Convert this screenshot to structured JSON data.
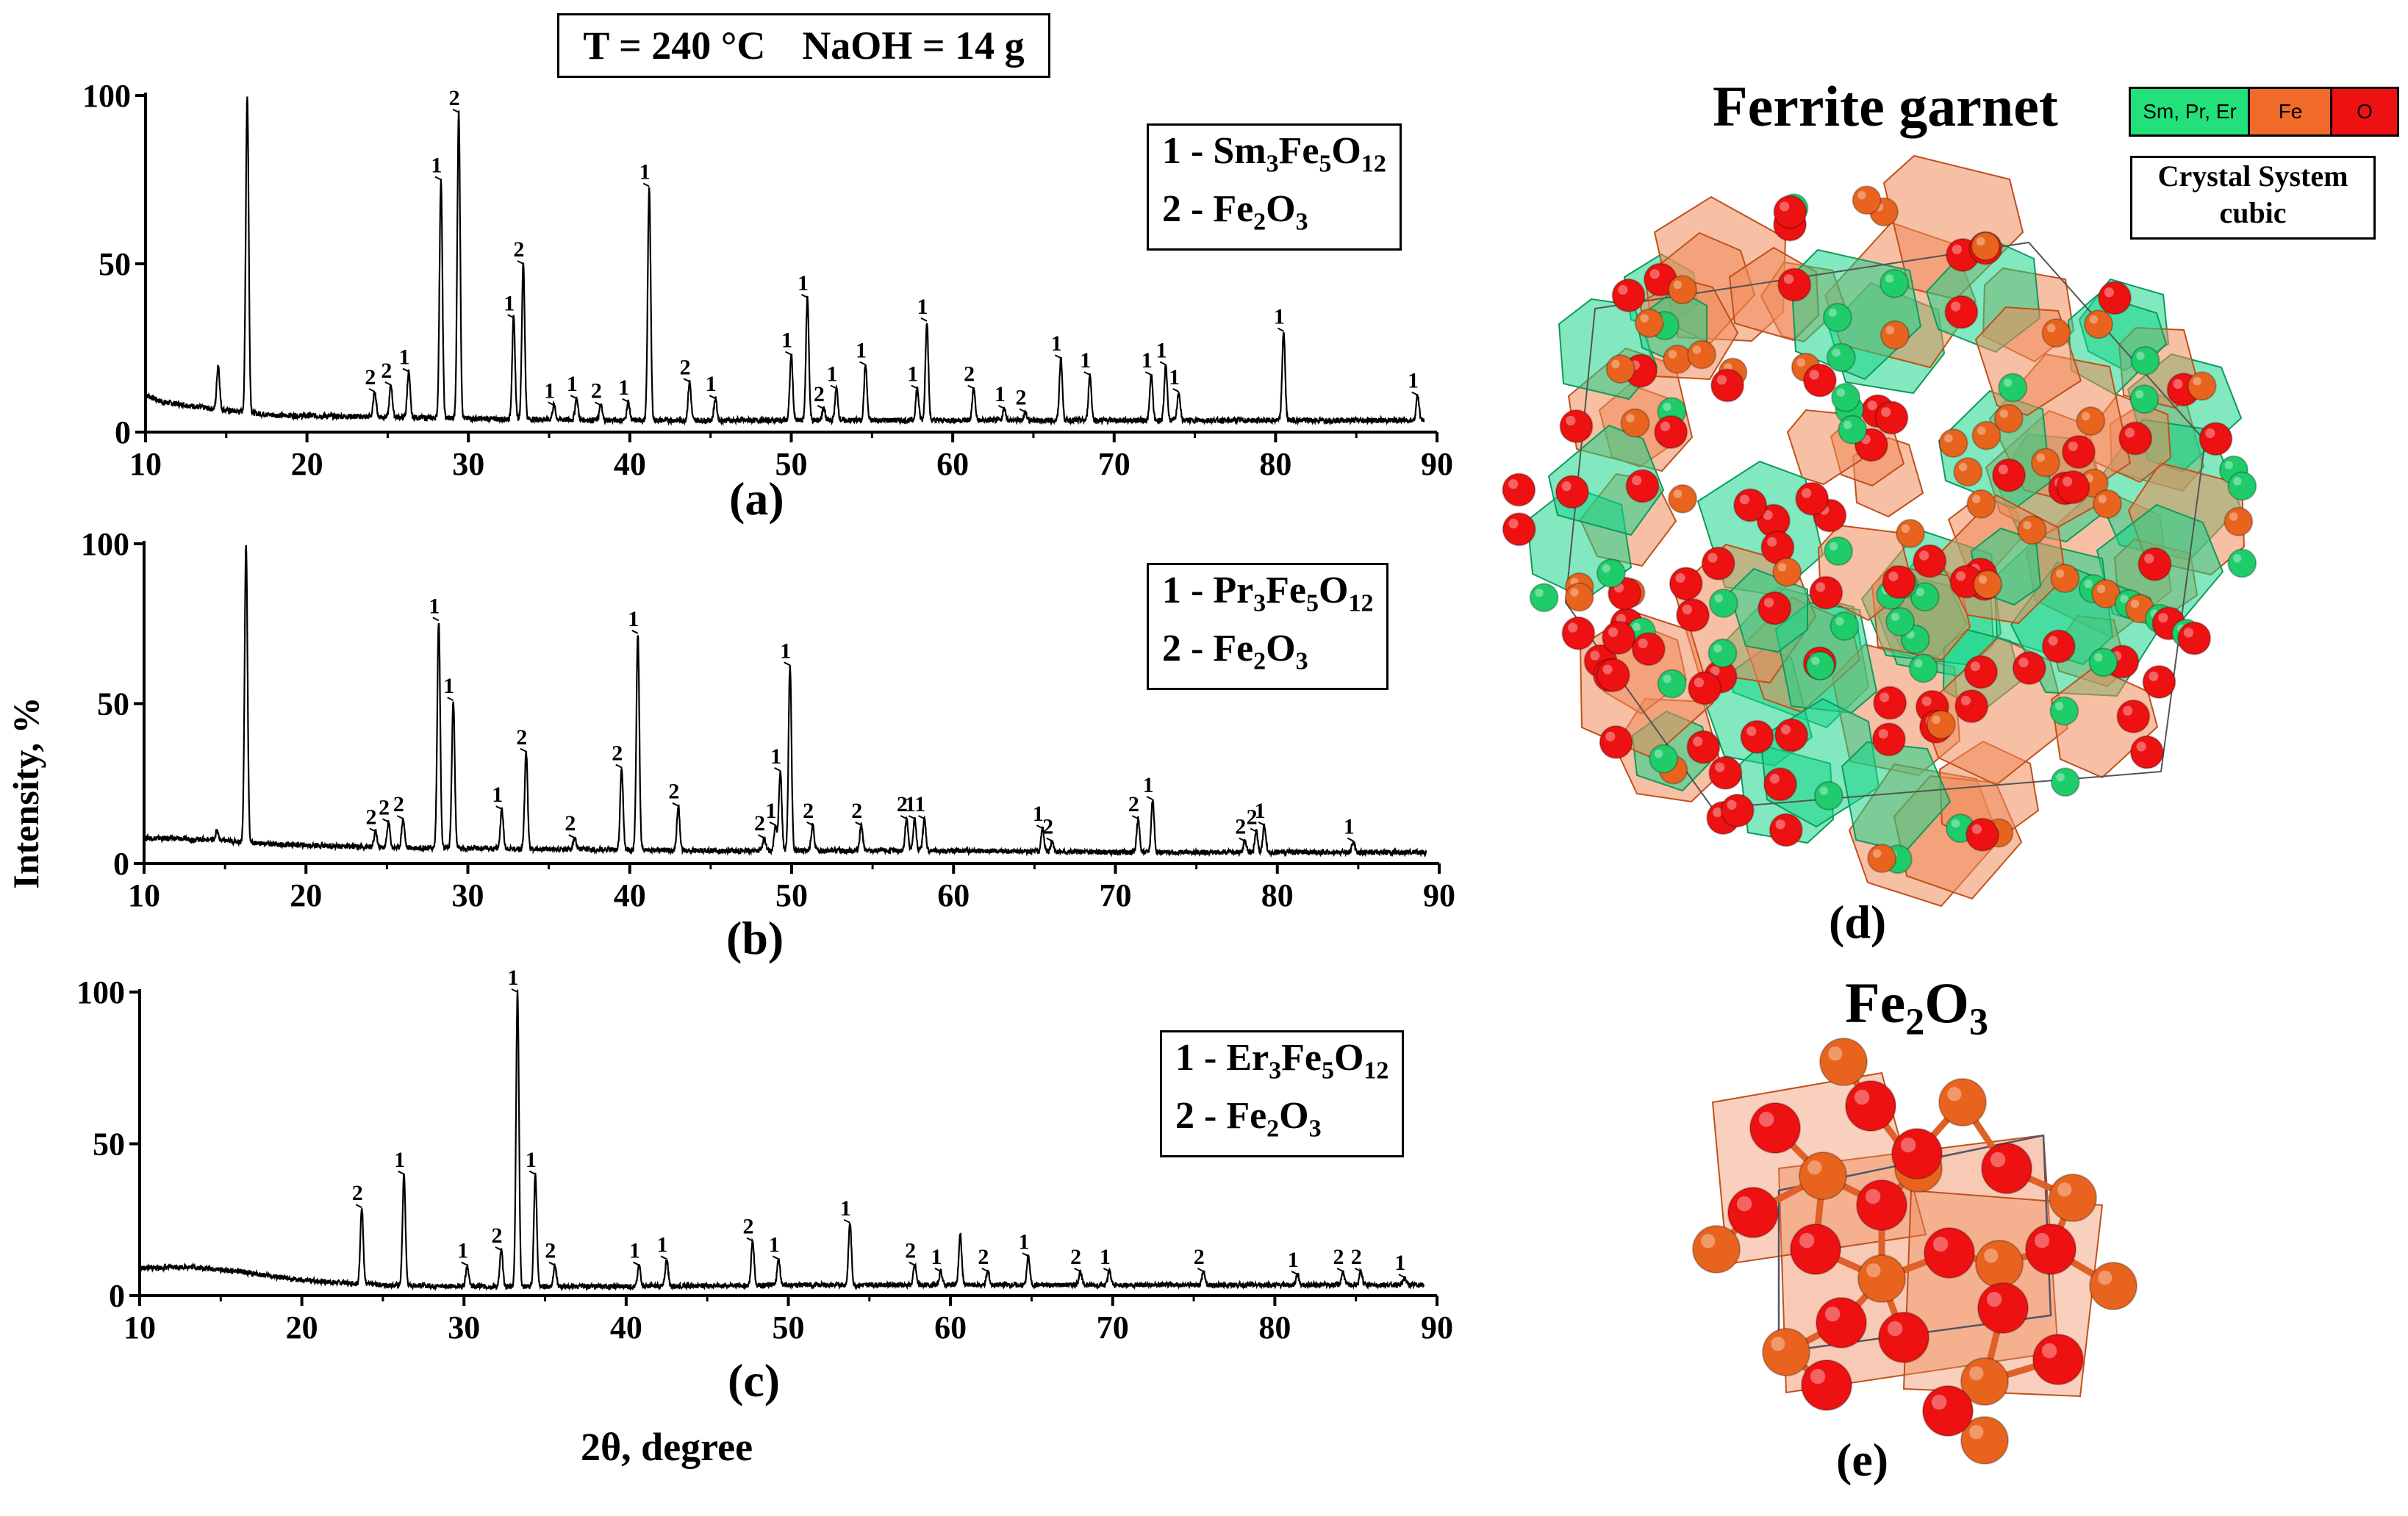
{
  "header": {
    "temperature": "T = 240 °C",
    "naoh": "NaOH = 14 g"
  },
  "axis": {
    "ylabel": "Intensity, %",
    "xlabel": "2θ, degree",
    "xticks": [
      "10",
      "20",
      "30",
      "40",
      "50",
      "60",
      "70",
      "80",
      "90"
    ],
    "yticks": [
      "0",
      "50",
      "100"
    ]
  },
  "chart_data": [
    {
      "type": "line",
      "panel_label": "(a)",
      "legend": [
        "1 - Sm3Fe5O12",
        "2 - Fe2O3"
      ],
      "xlim": [
        10,
        90
      ],
      "ylim": [
        0,
        100
      ],
      "background": [
        [
          10,
          11
        ],
        [
          11,
          9
        ],
        [
          14,
          7
        ],
        [
          18,
          5
        ],
        [
          25,
          4.5
        ],
        [
          30,
          4
        ],
        [
          40,
          3.5
        ],
        [
          50,
          3.5
        ],
        [
          60,
          3.5
        ],
        [
          70,
          3.5
        ],
        [
          80,
          3.5
        ],
        [
          89,
          3.5
        ]
      ],
      "peaks": [
        {
          "x": 14.5,
          "y": 20,
          "label": ""
        },
        {
          "x": 16.3,
          "y": 100,
          "label": ""
        },
        {
          "x": 24.2,
          "y": 12,
          "label": "2"
        },
        {
          "x": 25.2,
          "y": 14,
          "label": "2"
        },
        {
          "x": 26.3,
          "y": 18,
          "label": "1"
        },
        {
          "x": 28.3,
          "y": 75,
          "label": "1"
        },
        {
          "x": 29.4,
          "y": 95,
          "label": "2"
        },
        {
          "x": 32.8,
          "y": 34,
          "label": "1"
        },
        {
          "x": 33.4,
          "y": 50,
          "label": "2"
        },
        {
          "x": 35.3,
          "y": 8,
          "label": "1"
        },
        {
          "x": 36.7,
          "y": 10,
          "label": "1"
        },
        {
          "x": 38.2,
          "y": 8,
          "label": "2"
        },
        {
          "x": 39.9,
          "y": 9,
          "label": "1"
        },
        {
          "x": 41.2,
          "y": 73,
          "label": "1"
        },
        {
          "x": 43.7,
          "y": 15,
          "label": "2"
        },
        {
          "x": 45.3,
          "y": 10,
          "label": "1"
        },
        {
          "x": 50.0,
          "y": 23,
          "label": "1"
        },
        {
          "x": 51.0,
          "y": 40,
          "label": "1"
        },
        {
          "x": 52.0,
          "y": 7,
          "label": "2"
        },
        {
          "x": 52.8,
          "y": 13,
          "label": "1"
        },
        {
          "x": 54.6,
          "y": 20,
          "label": "1"
        },
        {
          "x": 57.8,
          "y": 13,
          "label": "1"
        },
        {
          "x": 58.4,
          "y": 33,
          "label": "1"
        },
        {
          "x": 61.3,
          "y": 13,
          "label": "2"
        },
        {
          "x": 63.2,
          "y": 7,
          "label": "1"
        },
        {
          "x": 64.5,
          "y": 6,
          "label": "2"
        },
        {
          "x": 66.7,
          "y": 22,
          "label": "1"
        },
        {
          "x": 68.5,
          "y": 17,
          "label": "1"
        },
        {
          "x": 72.3,
          "y": 17,
          "label": "1"
        },
        {
          "x": 73.2,
          "y": 20,
          "label": "1"
        },
        {
          "x": 74.0,
          "y": 12,
          "label": "1"
        },
        {
          "x": 80.5,
          "y": 30,
          "label": "1"
        },
        {
          "x": 88.8,
          "y": 11,
          "label": "1"
        }
      ]
    },
    {
      "type": "line",
      "panel_label": "(b)",
      "legend": [
        "1 - Pr3Fe5O12",
        "2 - Fe2O3"
      ],
      "xlim": [
        10,
        90
      ],
      "ylim": [
        0,
        100
      ],
      "background": [
        [
          10,
          8
        ],
        [
          14,
          7.5
        ],
        [
          18,
          6
        ],
        [
          25,
          5
        ],
        [
          35,
          4.5
        ],
        [
          45,
          4
        ],
        [
          60,
          4
        ],
        [
          70,
          3.5
        ],
        [
          80,
          3.5
        ],
        [
          89,
          3.5
        ]
      ],
      "peaks": [
        {
          "x": 14.5,
          "y": 10,
          "label": ""
        },
        {
          "x": 16.3,
          "y": 100,
          "label": ""
        },
        {
          "x": 24.3,
          "y": 10,
          "label": "2"
        },
        {
          "x": 25.1,
          "y": 13,
          "label": "2"
        },
        {
          "x": 26.0,
          "y": 14,
          "label": "2"
        },
        {
          "x": 28.2,
          "y": 76,
          "label": "1"
        },
        {
          "x": 29.1,
          "y": 51,
          "label": "1"
        },
        {
          "x": 32.1,
          "y": 17,
          "label": "1"
        },
        {
          "x": 33.6,
          "y": 35,
          "label": "2"
        },
        {
          "x": 36.6,
          "y": 8,
          "label": "2"
        },
        {
          "x": 39.5,
          "y": 30,
          "label": "2"
        },
        {
          "x": 40.5,
          "y": 72,
          "label": "1"
        },
        {
          "x": 43.0,
          "y": 18,
          "label": "2"
        },
        {
          "x": 48.3,
          "y": 8,
          "label": "2"
        },
        {
          "x": 49.0,
          "y": 12,
          "label": "1"
        },
        {
          "x": 49.3,
          "y": 29,
          "label": "1"
        },
        {
          "x": 49.9,
          "y": 62,
          "label": "1"
        },
        {
          "x": 51.3,
          "y": 12,
          "label": "2"
        },
        {
          "x": 54.3,
          "y": 12,
          "label": "2"
        },
        {
          "x": 57.1,
          "y": 14,
          "label": "2"
        },
        {
          "x": 57.6,
          "y": 14,
          "label": "1"
        },
        {
          "x": 58.2,
          "y": 14,
          "label": "1"
        },
        {
          "x": 65.5,
          "y": 11,
          "label": "1"
        },
        {
          "x": 66.1,
          "y": 7,
          "label": "2"
        },
        {
          "x": 71.4,
          "y": 14,
          "label": "2"
        },
        {
          "x": 72.3,
          "y": 20,
          "label": "1"
        },
        {
          "x": 78.0,
          "y": 7,
          "label": "2"
        },
        {
          "x": 78.7,
          "y": 10,
          "label": "2"
        },
        {
          "x": 79.2,
          "y": 12,
          "label": "1"
        },
        {
          "x": 84.7,
          "y": 7,
          "label": "1"
        }
      ]
    },
    {
      "type": "line",
      "panel_label": "(c)",
      "legend": [
        "1 - Er3Fe5O12",
        "2 - Fe2O3"
      ],
      "xlim": [
        10,
        90
      ],
      "ylim": [
        0,
        100
      ],
      "background": [
        [
          10,
          9
        ],
        [
          13,
          9.5
        ],
        [
          16,
          8
        ],
        [
          20,
          5
        ],
        [
          25,
          3.5
        ],
        [
          30,
          3
        ],
        [
          40,
          3
        ],
        [
          50,
          3.5
        ],
        [
          60,
          3.5
        ],
        [
          70,
          3.5
        ],
        [
          80,
          3.5
        ],
        [
          89,
          3.5
        ]
      ],
      "peaks": [
        {
          "x": 23.7,
          "y": 29,
          "label": "2"
        },
        {
          "x": 26.3,
          "y": 40,
          "label": "1"
        },
        {
          "x": 30.2,
          "y": 10,
          "label": "1"
        },
        {
          "x": 32.3,
          "y": 15,
          "label": "2"
        },
        {
          "x": 33.3,
          "y": 100,
          "label": "1"
        },
        {
          "x": 34.4,
          "y": 40,
          "label": "1"
        },
        {
          "x": 35.6,
          "y": 10,
          "label": "2"
        },
        {
          "x": 40.8,
          "y": 10,
          "label": "1"
        },
        {
          "x": 42.5,
          "y": 12,
          "label": "1"
        },
        {
          "x": 47.8,
          "y": 18,
          "label": "2"
        },
        {
          "x": 49.4,
          "y": 12,
          "label": "1"
        },
        {
          "x": 53.8,
          "y": 24,
          "label": "1"
        },
        {
          "x": 57.8,
          "y": 10,
          "label": "2"
        },
        {
          "x": 59.4,
          "y": 8,
          "label": "1"
        },
        {
          "x": 60.6,
          "y": 20,
          "label": ""
        },
        {
          "x": 62.3,
          "y": 8,
          "label": "2"
        },
        {
          "x": 64.8,
          "y": 13,
          "label": "1"
        },
        {
          "x": 68.0,
          "y": 8,
          "label": "2"
        },
        {
          "x": 69.8,
          "y": 8,
          "label": "1"
        },
        {
          "x": 75.6,
          "y": 8,
          "label": "2"
        },
        {
          "x": 81.4,
          "y": 7,
          "label": "1"
        },
        {
          "x": 84.2,
          "y": 8,
          "label": "2"
        },
        {
          "x": 85.3,
          "y": 8,
          "label": "2"
        },
        {
          "x": 88.0,
          "y": 6,
          "label": "1"
        }
      ]
    }
  ],
  "structures": {
    "garnet_title": "Ferrite garnet",
    "legend": [
      {
        "label": "Sm, Pr, Er",
        "color": "#22e07a"
      },
      {
        "label": "Fe",
        "color": "#f06a2a"
      },
      {
        "label": "O",
        "color": "#ee1111"
      }
    ],
    "crystal_system_label": "Crystal System",
    "crystal_system_value": "cubic",
    "garnet_panel": "(d)",
    "fe2o3_title": "Fe2O3",
    "fe2o3_panel": "(e)",
    "colors": {
      "o": "#ee1111",
      "fe": "#e8641e",
      "ln": "#1fcc6a",
      "poly_fe": "#f08a5a",
      "poly_ln": "#19d58a"
    }
  }
}
